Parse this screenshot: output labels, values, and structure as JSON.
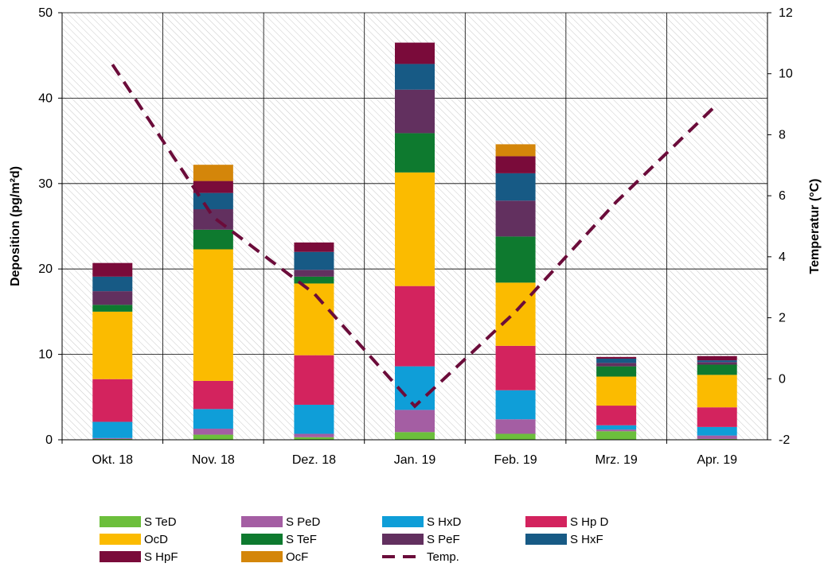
{
  "chart_data": {
    "type": "bar",
    "stacked": true,
    "categories": [
      "Okt. 18",
      "Nov. 18",
      "Dez. 18",
      "Jan. 19",
      "Feb. 19",
      "Mrz. 19",
      "Apr. 19"
    ],
    "ylabel": "Deposition (pg/m²d)",
    "y2label": "Temperatur (°C)",
    "ylim": [
      0,
      50
    ],
    "y2lim": [
      -2,
      12
    ],
    "yticks": [
      "0",
      "10",
      "20",
      "30",
      "40",
      "50"
    ],
    "y2ticks": [
      "-2",
      "0",
      "2",
      "4",
      "6",
      "8",
      "10",
      "12"
    ],
    "grid": true,
    "legend_position": "bottom",
    "series": [
      {
        "name": "S TeD",
        "color": "#6cbf3c",
        "values": [
          0.1,
          0.6,
          0.3,
          0.9,
          0.7,
          1.0,
          0.1
        ]
      },
      {
        "name": "S PeD",
        "color": "#a45ea3",
        "values": [
          0.1,
          0.7,
          0.4,
          2.6,
          1.7,
          0.2,
          0.4
        ]
      },
      {
        "name": "S HxD",
        "color": "#0f9ed8",
        "values": [
          1.9,
          2.3,
          3.4,
          5.1,
          3.4,
          0.5,
          1.0
        ]
      },
      {
        "name": "S Hp D",
        "color": "#d3235e",
        "values": [
          5.0,
          3.3,
          5.8,
          9.4,
          5.2,
          2.3,
          2.3
        ]
      },
      {
        "name": "OcD",
        "color": "#fbbb00",
        "values": [
          7.9,
          15.4,
          8.4,
          13.3,
          7.4,
          3.4,
          3.8
        ]
      },
      {
        "name": "S TeF",
        "color": "#0e7a2f",
        "values": [
          0.8,
          2.3,
          0.8,
          4.6,
          5.4,
          1.2,
          1.2
        ]
      },
      {
        "name": "S PeF",
        "color": "#62305f",
        "values": [
          1.6,
          2.4,
          0.8,
          5.1,
          4.2,
          0.4,
          0.3
        ]
      },
      {
        "name": "S HxF",
        "color": "#175a85",
        "values": [
          1.7,
          1.9,
          2.1,
          3.0,
          3.2,
          0.5,
          0.2
        ]
      },
      {
        "name": "S HpF",
        "color": "#7a0b3a",
        "values": [
          1.6,
          1.4,
          1.1,
          2.5,
          2.0,
          0.2,
          0.5
        ]
      },
      {
        "name": "OcF",
        "color": "#d4860a",
        "values": [
          0.0,
          1.9,
          0.0,
          0.0,
          1.4,
          0.0,
          0.0
        ]
      }
    ],
    "line_series": [
      {
        "name": "Temp.",
        "color": "#6b0c3a",
        "axis": "right",
        "style": "dashed",
        "values": [
          10.3,
          5.3,
          2.8,
          -0.9,
          2.2,
          5.8,
          9.0
        ]
      }
    ]
  }
}
